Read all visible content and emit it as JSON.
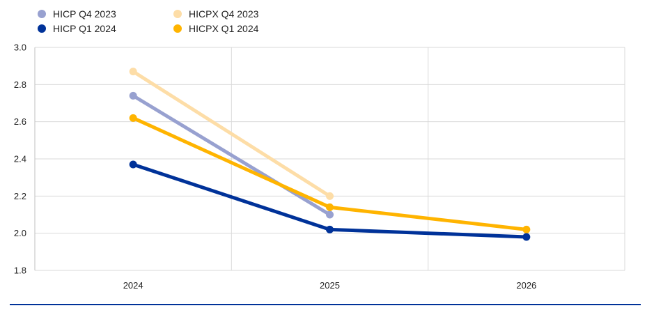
{
  "chart_data": {
    "type": "line",
    "title": "",
    "xlabel": "",
    "ylabel": "",
    "categories": [
      "2024",
      "2025",
      "2026"
    ],
    "ylim": [
      1.8,
      3.0
    ],
    "yticks": [
      "1.8",
      "2.0",
      "2.2",
      "2.4",
      "2.6",
      "2.8",
      "3.0"
    ],
    "grid": true,
    "legend_position": "top-left",
    "series": [
      {
        "name": "HICP Q4 2023",
        "color": "#98A1D0",
        "values": [
          2.74,
          2.1,
          null
        ]
      },
      {
        "name": "HICPX Q4 2023",
        "color": "#FDDDA7",
        "values": [
          2.87,
          2.2,
          null
        ]
      },
      {
        "name": "HICP Q1 2024",
        "color": "#003299",
        "values": [
          2.37,
          2.02,
          1.98
        ]
      },
      {
        "name": "HICPX Q1 2024",
        "color": "#FFB400",
        "values": [
          2.62,
          2.14,
          2.02
        ]
      }
    ],
    "draw_order": [
      0,
      1,
      3,
      2
    ],
    "legend_layout": [
      [
        0,
        1
      ],
      [
        2,
        3
      ]
    ]
  },
  "colors": {
    "grid": "#d9d9d9",
    "axis": "#bfbfbf",
    "footer_rule": "#003299"
  }
}
